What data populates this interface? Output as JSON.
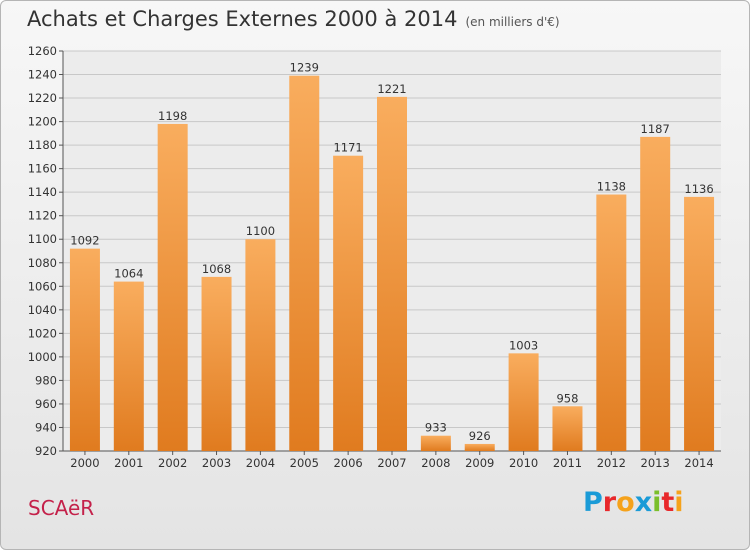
{
  "title": "Achats et Charges Externes 2000 à 2014",
  "subtitle": "(en milliers d'€)",
  "commune": "SCAëR",
  "logo": {
    "letters": [
      "P",
      "r",
      "o",
      "x",
      "i",
      "t",
      "i"
    ],
    "colors": [
      "#1a9bd7",
      "#e8282b",
      "#f5a21b",
      "#1a9bd7",
      "#7bbf2a",
      "#e8282b",
      "#f5a21b"
    ]
  },
  "colors": {
    "bar_light": "#f9ad5e",
    "bar_dark": "#e07b1f"
  },
  "chart_data": {
    "type": "bar",
    "title": "Achats et Charges Externes 2000 à 2014",
    "subtitle": "(en milliers d'€)",
    "categories": [
      "2000",
      "2001",
      "2002",
      "2003",
      "2004",
      "2005",
      "2006",
      "2007",
      "2008",
      "2009",
      "2010",
      "2011",
      "2012",
      "2013",
      "2014"
    ],
    "values": [
      1092,
      1064,
      1198,
      1068,
      1100,
      1239,
      1171,
      1221,
      933,
      926,
      1003,
      958,
      1138,
      1187,
      1136
    ],
    "ylim": [
      920,
      1260
    ],
    "yticks": [
      920,
      940,
      960,
      980,
      1000,
      1020,
      1040,
      1060,
      1080,
      1100,
      1120,
      1140,
      1160,
      1180,
      1200,
      1220,
      1240,
      1260
    ],
    "grid": true,
    "data_labels": true
  }
}
